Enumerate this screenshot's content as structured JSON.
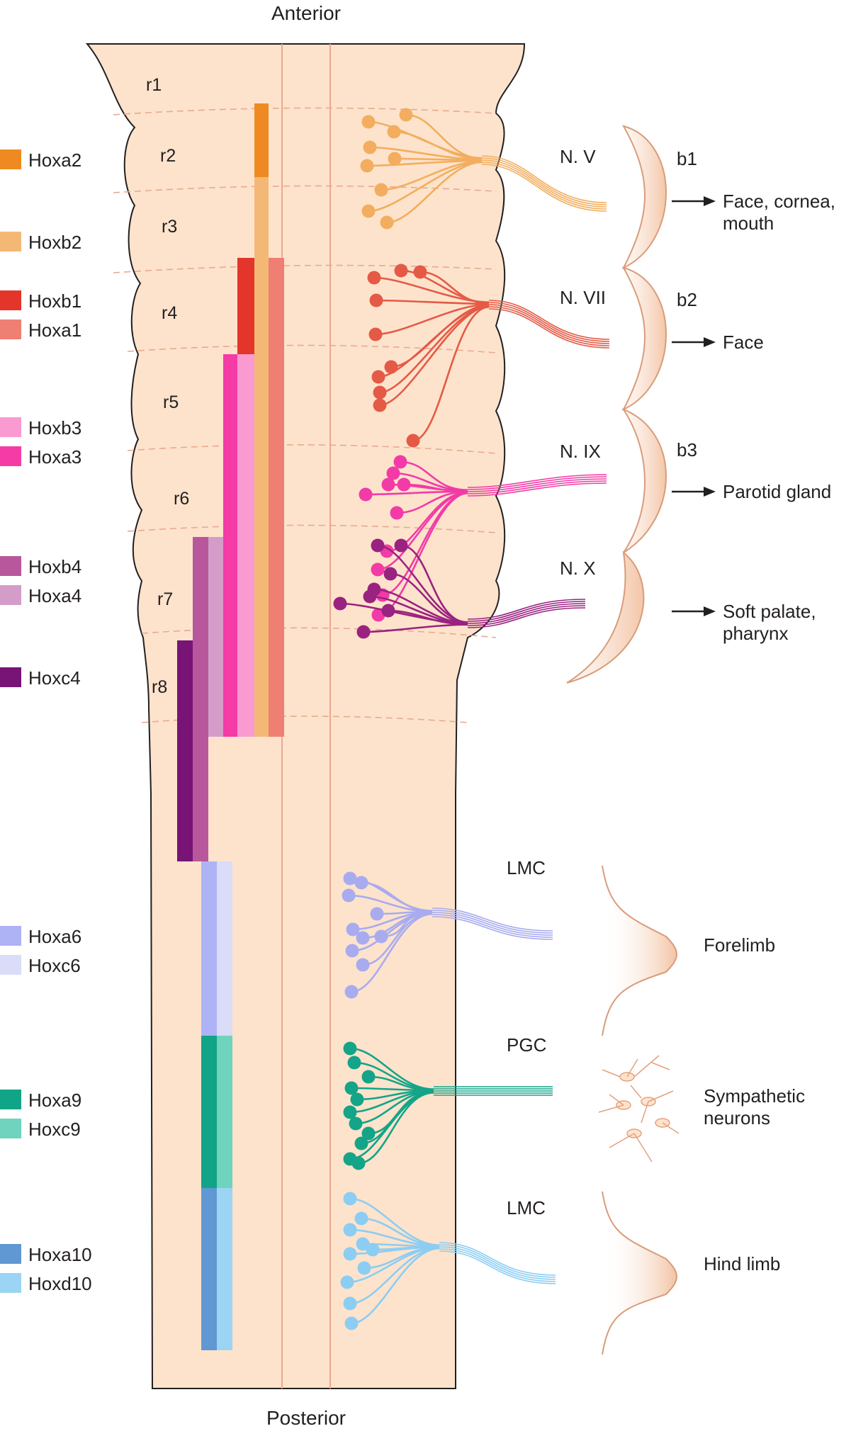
{
  "orientation": {
    "top": "Anterior",
    "bottom": "Posterior"
  },
  "rhombomeres": [
    "r1",
    "r2",
    "r3",
    "r4",
    "r5",
    "r6",
    "r7",
    "r8"
  ],
  "legend": [
    {
      "label": "Hoxa2",
      "color": "#ef8a22"
    },
    {
      "label": "Hoxb2",
      "color": "#f4b876"
    },
    {
      "label": "Hoxb1",
      "color": "#e4352b"
    },
    {
      "label": "Hoxa1",
      "color": "#ef7f72"
    },
    {
      "label": "Hoxb3",
      "color": "#f99bd0"
    },
    {
      "label": "Hoxa3",
      "color": "#f53ba6"
    },
    {
      "label": "Hoxb4",
      "color": "#b9579c"
    },
    {
      "label": "Hoxa4",
      "color": "#d49dc9"
    },
    {
      "label": "Hoxc4",
      "color": "#771476"
    },
    {
      "label": "Hoxa6",
      "color": "#aeb3f6"
    },
    {
      "label": "Hoxc6",
      "color": "#dadcf8"
    },
    {
      "label": "Hoxa9",
      "color": "#11a487"
    },
    {
      "label": "Hoxc9",
      "color": "#6fd3bd"
    },
    {
      "label": "Hoxa10",
      "color": "#5f98d2"
    },
    {
      "label": "Hoxd10",
      "color": "#9cd5f4"
    }
  ],
  "nerves": [
    {
      "label": "N. V",
      "color": "#f2ae5e"
    },
    {
      "label": "N. VII",
      "color": "#e45a46"
    },
    {
      "label": "N. IX",
      "color": "#f23ba6"
    },
    {
      "label": "N. X",
      "color": "#9a2280"
    }
  ],
  "arches": [
    {
      "label": "b1",
      "target": "Face, cornea, mouth",
      "target_lines": [
        "Face, cornea,",
        "mouth"
      ]
    },
    {
      "label": "b2",
      "target": "Face",
      "target_lines": [
        "Face"
      ]
    },
    {
      "label": "b3",
      "target": "Parotid gland",
      "target_lines": [
        "Parotid gland"
      ]
    },
    {
      "label": "",
      "target": "Soft palate, pharynx",
      "target_lines": [
        "Soft palate,",
        "pharynx"
      ]
    }
  ],
  "spinal": [
    {
      "label": "LMC",
      "target": "Forelimb",
      "target_lines": [
        "Forelimb"
      ],
      "color": "#a8acef"
    },
    {
      "label": "PGC",
      "target": "Sympathetic neurons",
      "target_lines": [
        "Sympathetic",
        "neurons"
      ],
      "color": "#14a488"
    },
    {
      "label": "LMC",
      "target": "Hind limb",
      "target_lines": [
        "Hind limb"
      ],
      "color": "#8ccdf3"
    }
  ],
  "colors": {
    "tissue": "#fde3cc",
    "outline": "#231f20",
    "boundary": "#e9a98f",
    "target_fill": "#f2c9b0",
    "target_stroke": "#d99c7a"
  }
}
